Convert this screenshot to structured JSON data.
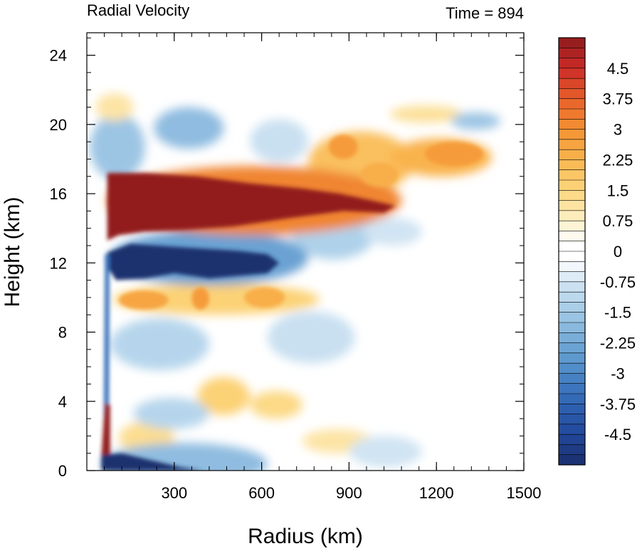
{
  "chart_data": {
    "type": "heatmap",
    "title_left": "Radial Velocity",
    "title_right": "Time = 894",
    "xlabel": "Radius (km)",
    "ylabel": "Height (km)",
    "xlim": [
      0,
      1500
    ],
    "ylim": [
      0,
      25.3
    ],
    "x_ticks": [
      "300",
      "600",
      "900",
      "1200",
      "1500"
    ],
    "x_tick_values": [
      300,
      600,
      900,
      1200,
      1500
    ],
    "y_ticks": [
      "0",
      "4",
      "8",
      "12",
      "16",
      "20",
      "24"
    ],
    "y_tick_values": [
      0,
      4,
      8,
      12,
      16,
      20,
      24
    ],
    "colorbar": {
      "labels": [
        "4.5",
        "3.75",
        "3",
        "2.25",
        "1.5",
        "0.75",
        "0",
        "-0.75",
        "-1.5",
        "-2.25",
        "-3",
        "-3.75",
        "-4.5"
      ],
      "levels": [
        4.5,
        3.75,
        3,
        2.25,
        1.5,
        0.75,
        0,
        -0.75,
        -1.5,
        -2.25,
        -3,
        -3.75,
        -4.5
      ],
      "min": -5.25,
      "max": 5.25,
      "n_bins": 42
    },
    "features": [
      {
        "kind": "outflow_jet",
        "r": [
          70,
          1060
        ],
        "z_center": 15.2,
        "value": 5.0
      },
      {
        "kind": "inflow_band",
        "r": [
          70,
          700
        ],
        "z_center": 12.0,
        "value": -5.0
      },
      {
        "kind": "outflow_layer",
        "r": [
          70,
          780
        ],
        "z_center": 9.8,
        "value": 2.2
      },
      {
        "kind": "upper_outflow",
        "r": [
          800,
          1400
        ],
        "z_center": 18.3,
        "value": 2.6
      },
      {
        "kind": "boundary_inflow",
        "r": [
          70,
          560
        ],
        "z_center": 0.4,
        "value": -5.0
      },
      {
        "kind": "eyewall_outflow",
        "r": [
          60,
          90
        ],
        "z_center": 2.3,
        "value": 5.0
      }
    ]
  }
}
